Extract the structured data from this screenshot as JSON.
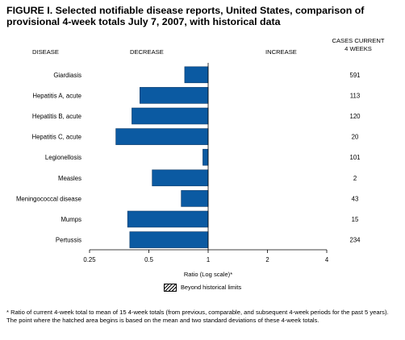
{
  "title": "FIGURE I. Selected notifiable disease reports, United States, comparison of provisional 4-week totals July 7, 2007, with historical data",
  "headers": {
    "disease": "DISEASE",
    "decrease": "DECREASE",
    "increase": "INCREASE",
    "cases_line1": "CASES CURRENT",
    "cases_line2": "4 WEEKS"
  },
  "legend": {
    "label": "Beyond historical limits"
  },
  "footnote": "* Ratio of current 4-week total to mean of 15 4-week totals (from previous, comparable, and subsequent 4-week periods for the past 5 years). The point where the hatched area begins is based on the mean and two standard deviations of these 4-week totals.",
  "colors": {
    "bar": "#0b5aa2",
    "bar_edge": "#0b3866"
  },
  "chart_data": {
    "type": "bar",
    "orientation": "horizontal",
    "scale": "log2",
    "xlabel": "Ratio (Log scale)*",
    "xlim": [
      0.25,
      4
    ],
    "baseline": 1,
    "xticks": [
      {
        "value": 0.25,
        "label": "0.25"
      },
      {
        "value": 0.5,
        "label": "0.5"
      },
      {
        "value": 1,
        "label": "1"
      },
      {
        "value": 2,
        "label": "2"
      },
      {
        "value": 4,
        "label": "4"
      }
    ],
    "categories": [
      "Giardiasis",
      "Hepatitis A, acute",
      "Hepatitis B, acute",
      "Hepatitis C, acute",
      "Legionellosis",
      "Measles",
      "Meningococcal disease",
      "Mumps",
      "Pertussis"
    ],
    "values": [
      0.76,
      0.45,
      0.41,
      0.34,
      0.94,
      0.52,
      0.73,
      0.39,
      0.4
    ],
    "cases": [
      "591",
      "113",
      "120",
      "20",
      "101",
      "2",
      "43",
      "15",
      "234"
    ]
  }
}
